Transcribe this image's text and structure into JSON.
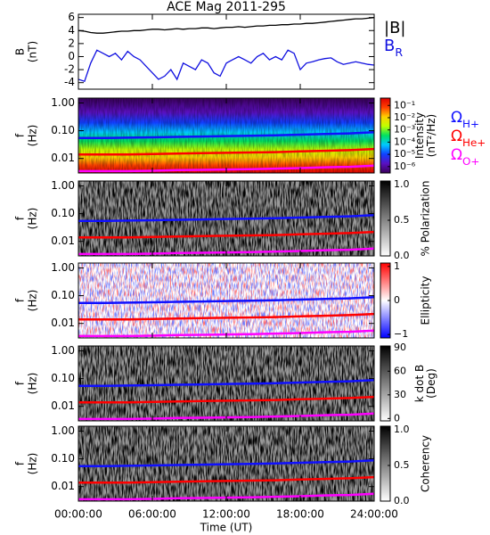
{
  "chart_data": [
    {
      "type": "line",
      "title": "ACE Mag 2011-295",
      "ylabel": [
        "B",
        "(nT)"
      ],
      "x": [
        0,
        0.5,
        1,
        1.5,
        2,
        2.5,
        3,
        3.5,
        4,
        4.5,
        5,
        5.5,
        6,
        6.5,
        7,
        7.5,
        8,
        8.5,
        9,
        9.5,
        10,
        10.5,
        11,
        11.5,
        12,
        12.5,
        13,
        13.5,
        14,
        14.5,
        15,
        15.5,
        16,
        16.5,
        17,
        17.5,
        18,
        18.5,
        19,
        19.5,
        20,
        20.5,
        21,
        21.5,
        22,
        22.5,
        23,
        23.5,
        24
      ],
      "series": [
        {
          "name": "|B|",
          "color": "#000000",
          "values": [
            4.0,
            3.9,
            3.7,
            3.6,
            3.6,
            3.7,
            3.8,
            3.9,
            3.9,
            4.0,
            4.0,
            4.1,
            4.2,
            4.2,
            4.1,
            4.2,
            4.3,
            4.2,
            4.3,
            4.3,
            4.4,
            4.4,
            4.3,
            4.4,
            4.5,
            4.5,
            4.6,
            4.5,
            4.6,
            4.7,
            4.7,
            4.8,
            4.8,
            4.9,
            4.9,
            5.0,
            5.0,
            5.1,
            5.1,
            5.2,
            5.3,
            5.4,
            5.5,
            5.6,
            5.7,
            5.8,
            5.8,
            5.9,
            6.0
          ]
        },
        {
          "name": "BR",
          "color": "#1010e0",
          "values": [
            -3.5,
            -3.8,
            -1.0,
            1.0,
            0.5,
            0.0,
            0.5,
            -0.5,
            0.8,
            0.0,
            -0.5,
            -1.5,
            -2.5,
            -3.5,
            -3.0,
            -2.0,
            -3.5,
            -1.0,
            -1.5,
            -2.0,
            -0.5,
            -1.0,
            -2.5,
            -3.0,
            -1.0,
            -0.5,
            0.0,
            -0.5,
            -1.0,
            0.0,
            0.5,
            -0.5,
            0.0,
            -0.5,
            1.0,
            0.5,
            -2.0,
            -1.0,
            -0.8,
            -0.5,
            -0.3,
            -0.2,
            -0.8,
            -1.2,
            -1.0,
            -0.8,
            -1.0,
            -1.2,
            -1.3
          ]
        }
      ],
      "ylim": [
        -5,
        6.5
      ],
      "yticks": [
        -4,
        -2,
        0,
        2,
        4,
        6
      ]
    },
    {
      "type": "spectrogram",
      "ylabel": [
        "f",
        "(Hz)"
      ],
      "ylim": [
        0.003,
        1.5
      ],
      "log_scale": true,
      "yticks": [
        {
          "value": 1,
          "label": "1.00"
        },
        {
          "value": 0.1,
          "label": "0.10"
        },
        {
          "value": 0.01,
          "label": "0.01"
        }
      ],
      "colorbar": {
        "label": [
          "Intensity",
          "(nT²/Hz)"
        ],
        "lim": [
          3e-07,
          0.4
        ],
        "log_scale": true,
        "colors": [
          "#3a005a",
          "#5a10c0",
          "#1040ff",
          "#00c8ff",
          "#00e060",
          "#c0ff00",
          "#ffd000",
          "#ff4000",
          "#e00000"
        ],
        "ticks": [
          {
            "value": 0.1,
            "label": "10⁻¹"
          },
          {
            "value": 0.01,
            "label": "10⁻²"
          },
          {
            "value": 0.001,
            "label": "10⁻³"
          },
          {
            "value": 0.0001,
            "label": "10⁻⁴"
          },
          {
            "value": 1e-05,
            "label": "10⁻⁵"
          },
          {
            "value": 1e-06,
            "label": "10⁻⁶"
          }
        ]
      },
      "x": [
        0,
        2,
        4,
        6,
        8,
        10,
        12,
        14,
        16,
        18,
        20,
        22,
        24
      ],
      "series": [
        {
          "name": "ΩH+",
          "color": "#1010ff",
          "values": [
            0.055,
            0.055,
            0.056,
            0.058,
            0.06,
            0.062,
            0.064,
            0.066,
            0.068,
            0.072,
            0.076,
            0.08,
            0.088
          ]
        },
        {
          "name": "ΩHe+",
          "color": "#ff0000",
          "values": [
            0.014,
            0.014,
            0.014,
            0.0145,
            0.015,
            0.0155,
            0.016,
            0.0165,
            0.017,
            0.018,
            0.019,
            0.02,
            0.022
          ]
        },
        {
          "name": "ΩO+",
          "color": "#ff00ff",
          "values": [
            0.0035,
            0.0035,
            0.0035,
            0.0036,
            0.0038,
            0.0039,
            0.004,
            0.0041,
            0.0043,
            0.0045,
            0.0048,
            0.005,
            0.0055
          ]
        }
      ]
    },
    {
      "type": "spectrogram",
      "ylabel": [
        "f",
        "(Hz)"
      ],
      "ylim": [
        0.003,
        1.5
      ],
      "log_scale": true,
      "yticks": [
        {
          "value": 1,
          "label": "1.00"
        },
        {
          "value": 0.1,
          "label": "0.10"
        },
        {
          "value": 0.01,
          "label": "0.01"
        }
      ],
      "colorbar": {
        "label": [
          "% Polarization"
        ],
        "lim": [
          0,
          1.05
        ],
        "colors": [
          "#ffffff",
          "#000000"
        ],
        "ticks": [
          {
            "value": 0,
            "label": "0.0"
          },
          {
            "value": 0.5,
            "label": "0.5"
          },
          {
            "value": 1,
            "label": "1.0"
          }
        ]
      }
    },
    {
      "type": "spectrogram",
      "ylabel": [
        "f",
        "(Hz)"
      ],
      "ylim": [
        0.003,
        1.5
      ],
      "log_scale": true,
      "yticks": [
        {
          "value": 1,
          "label": "1.00"
        },
        {
          "value": 0.1,
          "label": "0.10"
        },
        {
          "value": 0.01,
          "label": "0.01"
        }
      ],
      "colorbar": {
        "label": [
          "Ellipticity"
        ],
        "lim": [
          -1.1,
          1.1
        ],
        "colors": [
          "#0000ff",
          "#ffffff",
          "#ff0000"
        ],
        "ticks": [
          {
            "value": 1,
            "label": "1"
          },
          {
            "value": 0,
            "label": "0"
          },
          {
            "value": -1,
            "label": "−1"
          }
        ]
      }
    },
    {
      "type": "spectrogram",
      "ylabel": [
        "f",
        "(Hz)"
      ],
      "ylim": [
        0.003,
        1.5
      ],
      "log_scale": true,
      "yticks": [
        {
          "value": 1,
          "label": "1.00"
        },
        {
          "value": 0.1,
          "label": "0.10"
        },
        {
          "value": 0.01,
          "label": "0.01"
        }
      ],
      "colorbar": {
        "label": [
          "k dot B",
          "(Deg)"
        ],
        "lim": [
          -3,
          92
        ],
        "colors": [
          "#ffffff",
          "#000000"
        ],
        "ticks": [
          90,
          60,
          30,
          0
        ]
      }
    },
    {
      "type": "spectrogram",
      "ylabel": [
        "f",
        "(Hz)"
      ],
      "ylim": [
        0.003,
        1.5
      ],
      "log_scale": true,
      "yticks": [
        {
          "value": 1,
          "label": "1.00"
        },
        {
          "value": 0.1,
          "label": "0.10"
        },
        {
          "value": 0.01,
          "label": "0.01"
        }
      ],
      "colorbar": {
        "label": [
          "Coherency"
        ],
        "lim": [
          0,
          1.05
        ],
        "colors": [
          "#ffffff",
          "#000000"
        ],
        "ticks": [
          {
            "value": 0,
            "label": "0.0"
          },
          {
            "value": 0.5,
            "label": "0.5"
          },
          {
            "value": 1,
            "label": "1.0"
          }
        ]
      },
      "xlabel": "Time (UT)",
      "xlim": [
        0,
        24
      ],
      "xticks": [
        {
          "value": 0,
          "label": "00:00:00"
        },
        {
          "value": 6,
          "label": "06:00:00"
        },
        {
          "value": 12,
          "label": "12:00:00"
        },
        {
          "value": 18,
          "label": "18:00:00"
        },
        {
          "value": 24,
          "label": "24:00:00"
        }
      ]
    }
  ]
}
